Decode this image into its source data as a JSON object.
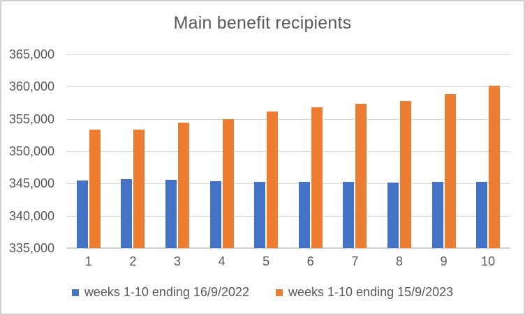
{
  "colors": {
    "series_2022": "#4472C4",
    "series_2023": "#ED7D31",
    "text": "#595959",
    "gridline": "#D9D9D9",
    "frame_border": "#D1D1D1",
    "background": "#FFFFFF"
  },
  "chart_data": {
    "type": "bar",
    "title": "Main benefit recipients",
    "xlabel": "",
    "ylabel": "",
    "grid": true,
    "legend_position": "bottom",
    "ylim": [
      335000,
      365000
    ],
    "ytick_step": 5000,
    "yticks": [
      {
        "value": 365000,
        "label": "365,000"
      },
      {
        "value": 360000,
        "label": "360,000"
      },
      {
        "value": 355000,
        "label": "355,000"
      },
      {
        "value": 350000,
        "label": "350,000"
      },
      {
        "value": 345000,
        "label": "345,000"
      },
      {
        "value": 340000,
        "label": "340,000"
      },
      {
        "value": 335000,
        "label": "335,000"
      }
    ],
    "categories": [
      "1",
      "2",
      "3",
      "4",
      "5",
      "6",
      "7",
      "8",
      "9",
      "10"
    ],
    "series": [
      {
        "name": "weeks 1-10 ending 16/9/2022",
        "color": "#4472C4",
        "values": [
          345500,
          345700,
          345600,
          345400,
          345200,
          345300,
          345200,
          345100,
          345200,
          345300
        ]
      },
      {
        "name": "weeks 1-10 ending 15/9/2023",
        "color": "#ED7D31",
        "values": [
          353400,
          353300,
          354400,
          355000,
          356100,
          356800,
          357300,
          357800,
          358900,
          360100
        ]
      }
    ]
  }
}
